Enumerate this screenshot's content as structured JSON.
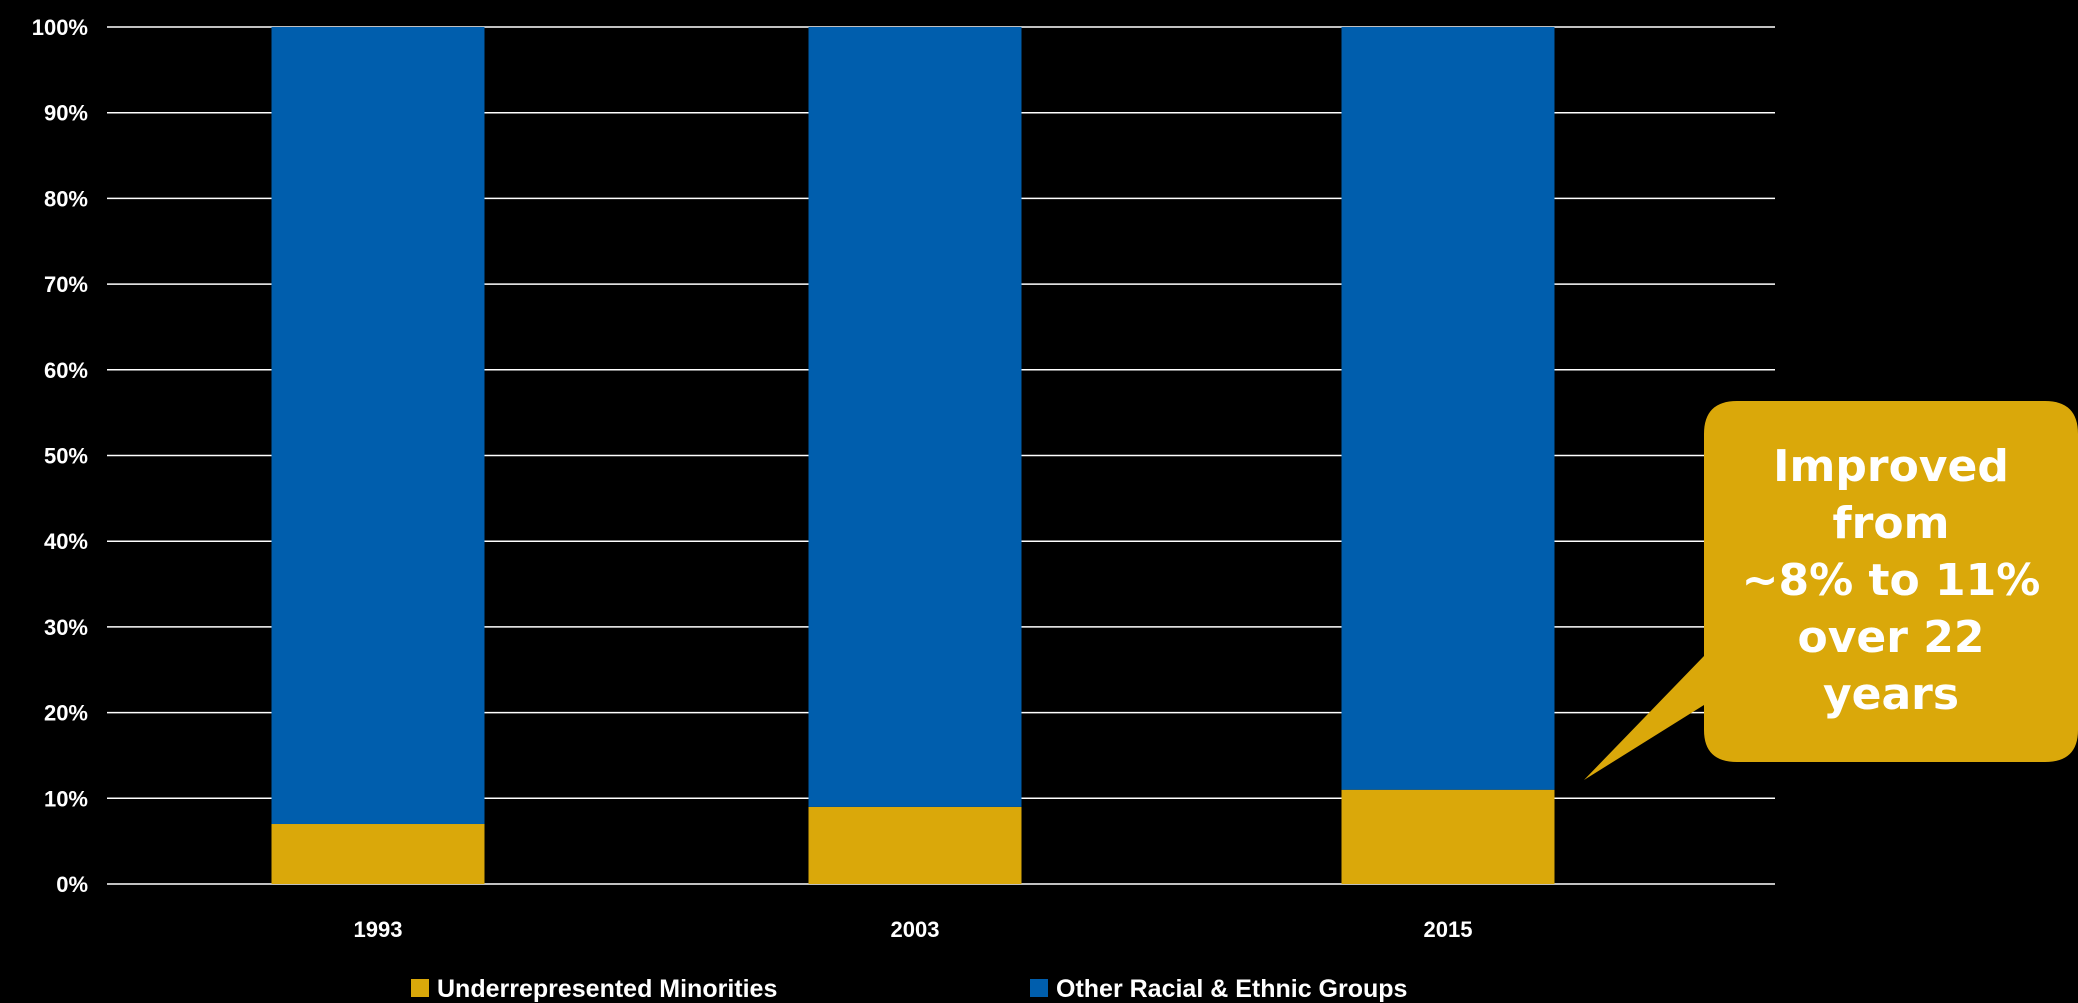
{
  "chart_data": {
    "type": "bar",
    "stacked": true,
    "categories": [
      "1993",
      "2003",
      "2015"
    ],
    "series": [
      {
        "name": "Underrepresented Minorities",
        "values": [
          7,
          9,
          11
        ],
        "color": "#DAA80A"
      },
      {
        "name": "Other Racial & Ethnic Groups",
        "values": [
          93,
          91,
          89
        ],
        "color": "#005EAD"
      }
    ],
    "title": "",
    "xlabel": "",
    "ylabel": "",
    "ylim": [
      0,
      100
    ],
    "yticks": [
      "0%",
      "10%",
      "20%",
      "30%",
      "40%",
      "50%",
      "60%",
      "70%",
      "80%",
      "90%",
      "100%"
    ],
    "grid": true,
    "legend_position": "bottom",
    "annotation": {
      "lines": [
        "Improved",
        "from",
        "~8% to 11%",
        "over 22",
        "years"
      ],
      "color": "#DAA80A"
    }
  },
  "colors": {
    "background": "#000000",
    "grid": "#ffffff",
    "text": "#ffffff"
  }
}
